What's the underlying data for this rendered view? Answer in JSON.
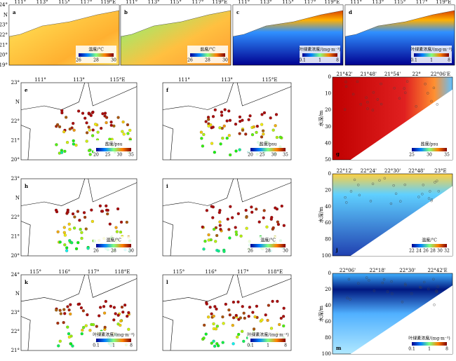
{
  "panels": [
    {
      "letter": "a",
      "xticks": [
        "111°",
        "113°",
        "115°",
        "117°",
        "119°E"
      ],
      "yticks": [
        "24°",
        "N",
        "23°",
        "22°",
        "21°",
        "20°",
        "19°"
      ],
      "legend_title": "温度/°C",
      "legend_ticks": [
        "26",
        "28",
        "30"
      ]
    },
    {
      "letter": "b",
      "xticks": [
        "111°",
        "113°",
        "115°",
        "117°",
        "119°E"
      ],
      "legend_title": "盐度/°C",
      "legend_ticks": [
        "26",
        "28",
        "30"
      ]
    },
    {
      "letter": "c",
      "xticks": [
        "111°",
        "113°",
        "115°",
        "117°",
        "119°E"
      ],
      "legend_title": "叶绿素浓度/(mg·m⁻³)",
      "legend_ticks": [
        "0.1",
        "1",
        "8"
      ]
    },
    {
      "letter": "d",
      "xticks": [
        "111°",
        "113°",
        "115°",
        "117°",
        "119°E"
      ],
      "legend_title": "叶绿素浓度/(mg·m⁻³)",
      "legend_ticks": [
        "0.1",
        "1",
        "8"
      ]
    },
    {
      "letter": "e",
      "xticks": [
        "111°",
        "113°",
        "115°E"
      ],
      "yticks": [
        "23°",
        "N",
        "22°",
        "21°",
        "20°"
      ],
      "legend_title": "盐度/psu",
      "legend_ticks": [
        "20",
        "25",
        "30",
        "35"
      ]
    },
    {
      "letter": "f",
      "xticks": [
        "111°",
        "113°",
        "115°E"
      ],
      "legend_title": "盐度/psu",
      "legend_ticks": [
        "20",
        "25",
        "30",
        "35"
      ]
    },
    {
      "letter": "g",
      "xticks": [
        "21°42'",
        "21°48'",
        "21°54'",
        "22°",
        "22°06'E"
      ],
      "yticks": [
        "0",
        "10",
        "20",
        "30",
        "40",
        "50"
      ],
      "ylabel": "水深/m",
      "legend_title": "盐度/psu",
      "legend_ticks": [
        "25",
        "30",
        "35"
      ]
    },
    {
      "letter": "h",
      "yticks": [
        "23°",
        "N",
        "22°",
        "21°",
        "20°"
      ],
      "legend_title": "温度/°C",
      "legend_ticks": [
        "26",
        "28",
        "30"
      ]
    },
    {
      "letter": "i",
      "legend_title": "温度/°C",
      "legend_ticks": [
        "26",
        "28",
        "30"
      ]
    },
    {
      "letter": "j",
      "xticks": [
        "22°12'",
        "22°24'",
        "22°30'",
        "22°48'",
        "23°E"
      ],
      "yticks": [
        "0",
        "20",
        "40",
        "60",
        "80",
        "100"
      ],
      "ylabel": "水深/m",
      "legend_title": "温度/°C",
      "legend_ticks": [
        "22",
        "24",
        "26",
        "28",
        "30",
        "32"
      ]
    },
    {
      "letter": "k",
      "xticks": [
        "115°",
        "116°",
        "117°",
        "118°E"
      ],
      "yticks": [
        "24°",
        "N",
        "23°",
        "22°",
        "21°"
      ],
      "legend_title": "叶绿素浓度/(mg·m⁻³)",
      "legend_ticks": [
        "0.1",
        "1",
        "8"
      ]
    },
    {
      "letter": "l",
      "xticks": [
        "115°",
        "116°",
        "117°",
        "118°E"
      ],
      "legend_title": "叶绿素浓度/(mg·m⁻³)",
      "legend_ticks": [
        "0.1",
        "1",
        "8"
      ]
    },
    {
      "letter": "m",
      "xticks": [
        "22°06'",
        "22°18'",
        "22°30'",
        "22°42'E"
      ],
      "yticks": [
        "0",
        "20",
        "40",
        "60",
        "80",
        "100"
      ],
      "ylabel": "水深/m",
      "legend_title": "叶绿素浓度/(mg·m⁻³)",
      "legend_ticks": [
        "0.1",
        "1",
        "8"
      ]
    }
  ]
}
